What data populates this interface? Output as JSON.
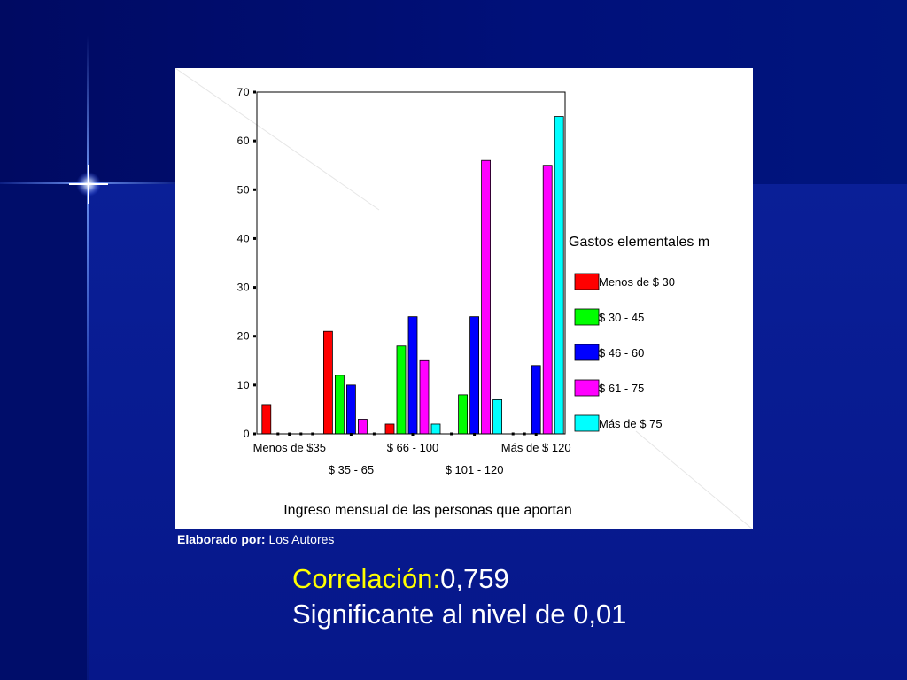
{
  "chart_data": {
    "type": "bar",
    "categories": [
      "Menos de $35",
      "$ 35 - 65",
      "$ 66 - 100",
      "$ 101 - 120",
      "Más de $ 120"
    ],
    "series": [
      {
        "name": "Menos de $ 30",
        "color": "#ff0000",
        "values": [
          6,
          21,
          2,
          0,
          0
        ]
      },
      {
        "name": "$ 30 - 45",
        "color": "#00ff00",
        "values": [
          0,
          12,
          18,
          8,
          0
        ]
      },
      {
        "name": "$ 46 - 60",
        "color": "#0000ff",
        "values": [
          0,
          10,
          24,
          24,
          14
        ]
      },
      {
        "name": "$ 61 - 75",
        "color": "#ff00ff",
        "values": [
          0,
          3,
          15,
          56,
          55
        ]
      },
      {
        "name": "Más de $ 75",
        "color": "#00ffff",
        "values": [
          0,
          0,
          2,
          7,
          65
        ]
      }
    ],
    "ylim": [
      0,
      70
    ],
    "yticks": [
      0,
      10,
      20,
      30,
      40,
      50,
      60,
      70
    ],
    "xlabel": "Ingreso mensual de las personas que aportan",
    "legend_title": "Gastos elementales m",
    "legend_position": "right"
  },
  "caption": {
    "label": "Elaborado por:",
    "value": "Los Autores"
  },
  "stats": {
    "correlation_label": "Correlación:",
    "correlation_value": "0,759",
    "significance": "Significante al nivel de 0,01"
  }
}
